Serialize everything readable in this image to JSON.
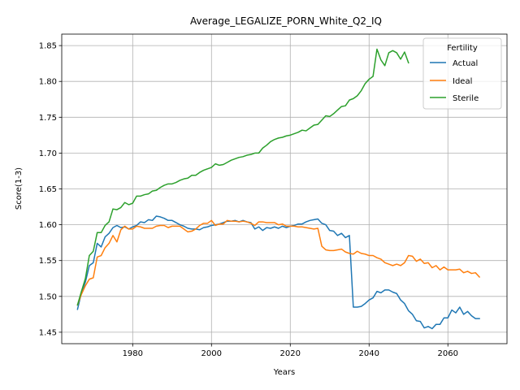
{
  "chart_data": {
    "type": "line",
    "title": "Average_LEGALIZE_PORN_White_Q2_IQ",
    "xlabel": "Years",
    "ylabel": "Score(1-3)",
    "xlim": [
      1962,
      2075
    ],
    "ylim": [
      1.434,
      1.866
    ],
    "xticks": [
      1980,
      2000,
      2020,
      2040,
      2060
    ],
    "yticks": [
      1.45,
      1.5,
      1.55,
      1.6,
      1.65,
      1.7,
      1.75,
      1.8,
      1.85
    ],
    "grid": true,
    "legend": {
      "title": "Fertility",
      "placement": "top-right"
    },
    "series": [
      {
        "name": "Actual",
        "color": "#1f77b4",
        "x_start": 1966,
        "values": [
          1.482,
          1.505,
          1.52,
          1.543,
          1.547,
          1.574,
          1.569,
          1.583,
          1.588,
          1.596,
          1.599,
          1.596,
          1.597,
          1.594,
          1.597,
          1.599,
          1.604,
          1.603,
          1.607,
          1.606,
          1.612,
          1.611,
          1.609,
          1.606,
          1.606,
          1.603,
          1.6,
          1.598,
          1.595,
          1.594,
          1.594,
          1.593,
          1.596,
          1.597,
          1.599,
          1.6,
          1.601,
          1.603,
          1.605,
          1.605,
          1.606,
          1.604,
          1.606,
          1.604,
          1.603,
          1.594,
          1.597,
          1.592,
          1.596,
          1.595,
          1.597,
          1.595,
          1.598,
          1.596,
          1.598,
          1.599,
          1.601,
          1.601,
          1.604,
          1.606,
          1.607,
          1.608,
          1.602,
          1.6,
          1.592,
          1.591,
          1.585,
          1.588,
          1.582,
          1.585,
          1.485,
          1.485,
          1.486,
          1.49,
          1.495,
          1.498,
          1.507,
          1.505,
          1.509,
          1.509,
          1.506,
          1.504,
          1.495,
          1.49,
          1.48,
          1.475,
          1.466,
          1.465,
          1.456,
          1.458,
          1.455,
          1.461,
          1.461,
          1.47,
          1.47,
          1.481,
          1.477,
          1.485,
          1.475,
          1.479,
          1.473,
          1.469,
          1.469
        ]
      },
      {
        "name": "Ideal",
        "color": "#ff7f0e",
        "x_start": 1966,
        "values": [
          1.488,
          1.503,
          1.515,
          1.524,
          1.526,
          1.555,
          1.557,
          1.568,
          1.574,
          1.585,
          1.576,
          1.593,
          1.598,
          1.594,
          1.594,
          1.598,
          1.597,
          1.595,
          1.595,
          1.595,
          1.598,
          1.599,
          1.599,
          1.596,
          1.598,
          1.598,
          1.598,
          1.594,
          1.59,
          1.591,
          1.594,
          1.599,
          1.602,
          1.602,
          1.606,
          1.599,
          1.601,
          1.601,
          1.606,
          1.605,
          1.605,
          1.604,
          1.605,
          1.604,
          1.602,
          1.599,
          1.604,
          1.604,
          1.603,
          1.603,
          1.603,
          1.6,
          1.601,
          1.598,
          1.598,
          1.598,
          1.597,
          1.597,
          1.596,
          1.595,
          1.594,
          1.595,
          1.57,
          1.565,
          1.564,
          1.564,
          1.565,
          1.566,
          1.562,
          1.56,
          1.559,
          1.563,
          1.56,
          1.559,
          1.557,
          1.557,
          1.554,
          1.552,
          1.547,
          1.545,
          1.543,
          1.545,
          1.543,
          1.547,
          1.557,
          1.556,
          1.549,
          1.552,
          1.546,
          1.547,
          1.54,
          1.543,
          1.537,
          1.541,
          1.537,
          1.537,
          1.537,
          1.538,
          1.533,
          1.535,
          1.532,
          1.533,
          1.527
        ]
      },
      {
        "name": "Sterile",
        "color": "#2ca02c",
        "x_start": 1966,
        "values": [
          1.488,
          1.507,
          1.525,
          1.557,
          1.563,
          1.589,
          1.589,
          1.599,
          1.604,
          1.622,
          1.621,
          1.624,
          1.631,
          1.628,
          1.63,
          1.64,
          1.64,
          1.642,
          1.643,
          1.647,
          1.648,
          1.652,
          1.655,
          1.657,
          1.657,
          1.659,
          1.662,
          1.664,
          1.665,
          1.669,
          1.669,
          1.673,
          1.676,
          1.678,
          1.68,
          1.685,
          1.683,
          1.684,
          1.687,
          1.69,
          1.692,
          1.694,
          1.695,
          1.697,
          1.698,
          1.7,
          1.7,
          1.707,
          1.711,
          1.716,
          1.719,
          1.721,
          1.722,
          1.724,
          1.725,
          1.727,
          1.729,
          1.732,
          1.731,
          1.735,
          1.739,
          1.74,
          1.746,
          1.752,
          1.751,
          1.755,
          1.76,
          1.765,
          1.766,
          1.774,
          1.776,
          1.78,
          1.787,
          1.797,
          1.803,
          1.807,
          1.845,
          1.83,
          1.822,
          1.84,
          1.843,
          1.84,
          1.831,
          1.841,
          1.826
        ]
      }
    ]
  }
}
